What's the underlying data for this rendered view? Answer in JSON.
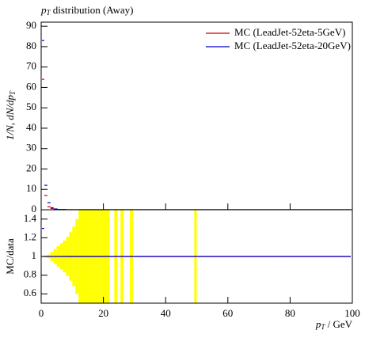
{
  "chart_data": {
    "type": "ratio-histogram",
    "title": {
      "var": "p",
      "sub": "T",
      "rest": " distribution (Away)"
    },
    "ylabel": {
      "pre": "1/N, dN/dp",
      "sub": "T"
    },
    "xlabel": {
      "var": "p",
      "sub": "T",
      "rest": "  / GeV"
    },
    "ratio_label": "MC/data",
    "xlim": [
      0,
      100
    ],
    "xticks": [
      0,
      20,
      40,
      60,
      80,
      100
    ],
    "ylim": [
      0,
      92
    ],
    "yticks": [
      0,
      10,
      20,
      30,
      40,
      50,
      60,
      70,
      80,
      90
    ],
    "ratio_ylim": [
      0.5,
      1.5
    ],
    "ratio_yticks": [
      0.6,
      0.8,
      1,
      1.2,
      1.4
    ],
    "legend": "upper right",
    "x": [
      0.5,
      1.5,
      2.5,
      3.5,
      4.5,
      6,
      10,
      20,
      50,
      99
    ],
    "series": [
      {
        "name": "MC (LeadJet-52eta-5GeV)",
        "color": "#cc0000",
        "values": [
          64,
          7,
          1.5,
          0.6,
          0.3,
          0.1,
          0,
          0,
          0,
          0
        ],
        "ratio": [
          1,
          1,
          1,
          1,
          1,
          1,
          1,
          1,
          1,
          1
        ]
      },
      {
        "name": "MC (LeadJet-52eta-20GeV)",
        "color": "#0000cc",
        "values": [
          83,
          12,
          3.5,
          1,
          0.4,
          0.1,
          0,
          0,
          0,
          0
        ],
        "ratio": [
          1.3,
          1,
          1,
          1,
          1,
          1,
          1,
          1,
          1,
          1
        ]
      }
    ],
    "band_color": "#ffff00",
    "band_bins": [
      [
        2,
        3
      ],
      [
        3,
        4
      ],
      [
        4,
        5
      ],
      [
        5,
        6
      ],
      [
        6,
        7
      ],
      [
        7,
        8
      ],
      [
        8,
        9
      ],
      [
        9,
        10
      ],
      [
        10,
        11
      ],
      [
        11,
        12
      ],
      [
        12,
        13
      ],
      [
        13,
        14
      ],
      [
        14,
        15
      ],
      [
        15,
        16
      ],
      [
        16,
        17
      ],
      [
        17,
        18
      ],
      [
        18,
        19
      ],
      [
        19,
        20
      ],
      [
        20,
        21
      ],
      [
        21,
        22
      ],
      [
        23.5,
        24.5
      ],
      [
        25.5,
        26.5
      ],
      [
        28.5,
        29.5
      ],
      [
        49.2,
        50
      ]
    ],
    "band_err": [
      0.02,
      0.05,
      0.08,
      0.11,
      0.14,
      0.17,
      0.21,
      0.26,
      0.32,
      0.4,
      0.6,
      1,
      1,
      1,
      1,
      1,
      1,
      1,
      1,
      1,
      1,
      1,
      1,
      1
    ]
  }
}
